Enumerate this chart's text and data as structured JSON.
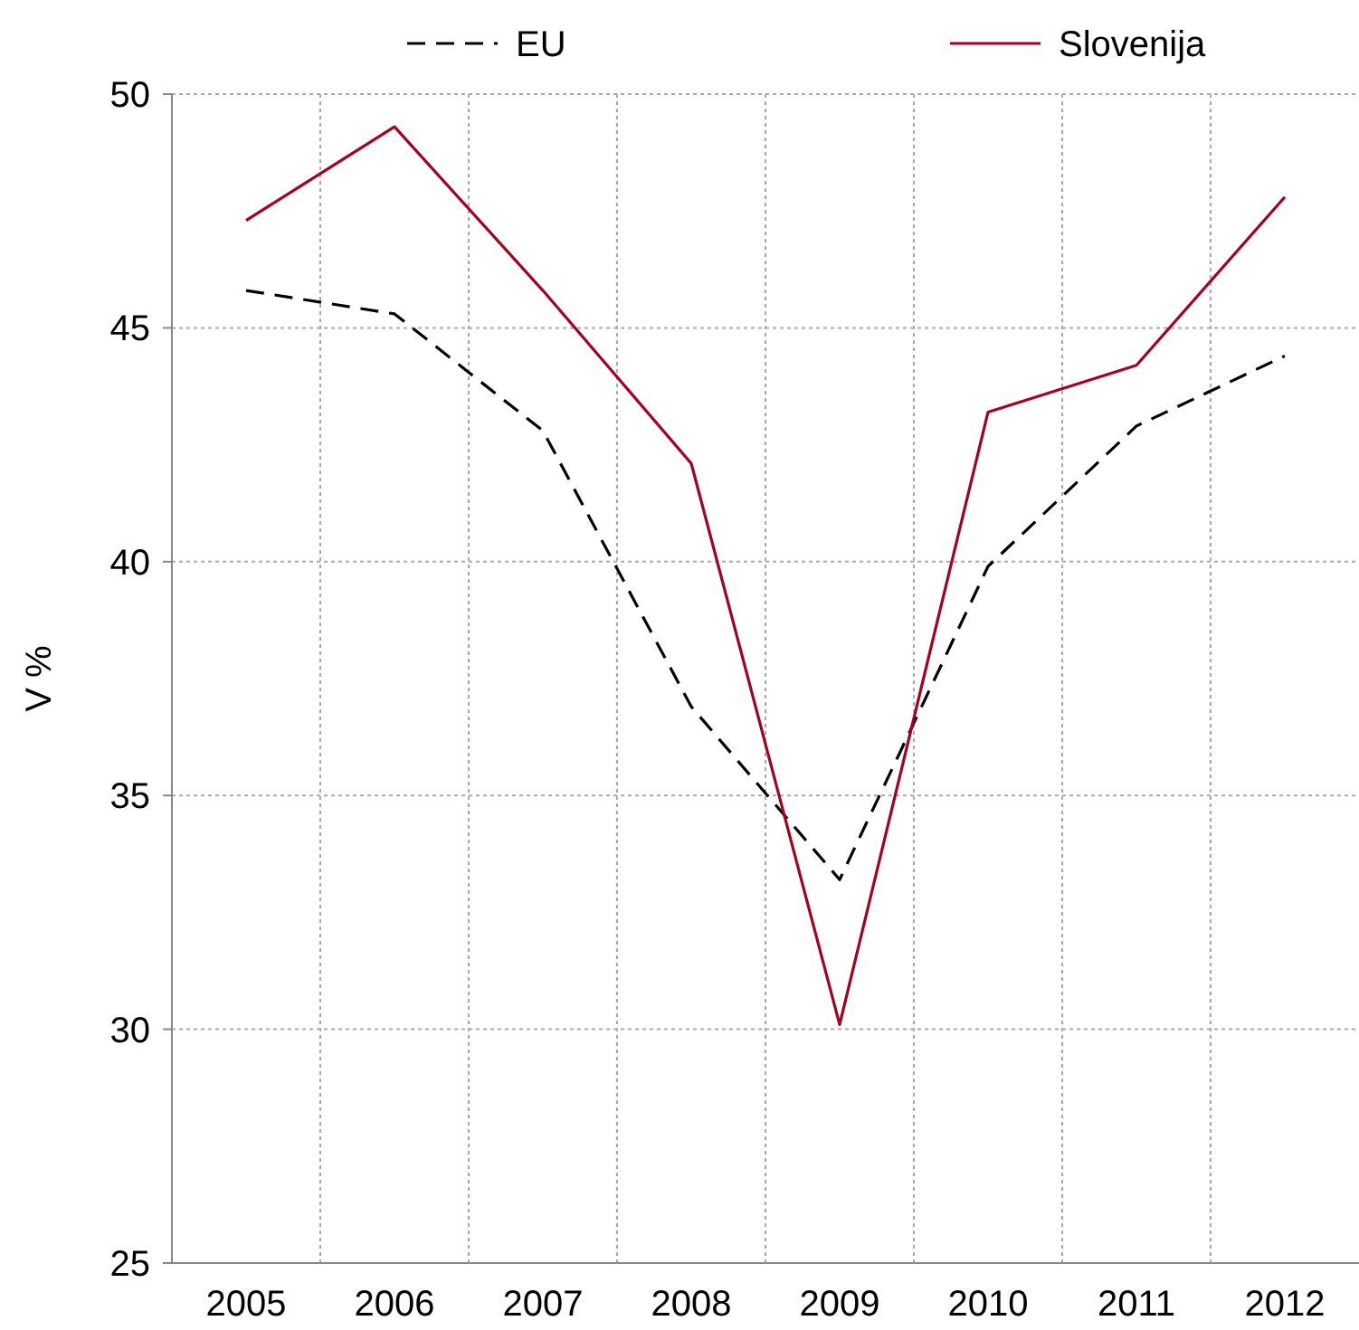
{
  "chart_data": {
    "type": "line",
    "ylabel": "V %",
    "categories": [
      "2005",
      "2006",
      "2007",
      "2008",
      "2009",
      "2010",
      "2011",
      "2012"
    ],
    "series": [
      {
        "name": "EU",
        "color": "#000000",
        "line_style": "dashed",
        "values": [
          45.8,
          45.3,
          42.8,
          36.9,
          33.2,
          39.9,
          42.9,
          44.4
        ]
      },
      {
        "name": "Slovenija",
        "color": "#a50021",
        "line_style": "solid",
        "values": [
          47.3,
          49.3,
          45.8,
          42.1,
          30.1,
          43.2,
          44.2,
          47.8
        ]
      }
    ],
    "ylim": [
      25,
      50
    ],
    "yticks": [
      25,
      30,
      35,
      40,
      45,
      50
    ],
    "grid": true,
    "legend": "top",
    "marker": "none"
  }
}
